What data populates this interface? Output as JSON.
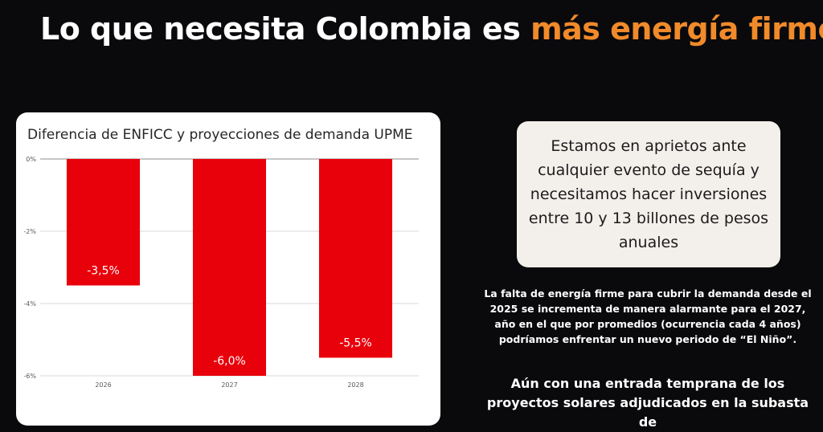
{
  "slide": {
    "title_main": "Lo que necesita Colombia es ",
    "title_accent": "más energía firme",
    "accent_color": "#f08a2a"
  },
  "callout": {
    "text": "Estamos en aprietos ante cualquier evento de sequía y necesitamos hacer inversiones entre 10 y 13 billones de pesos anuales"
  },
  "body": {
    "paragraph_1": "La falta de energía firme para cubrir la demanda desde el 2025 se incrementa de manera alarmante para el 2027, año en el que por promedios (ocurrencia cada 4 años) podríamos enfrentar un nuevo periodo de “El Niño”.",
    "paragraph_2": "Aún con una entrada temprana de los proyectos solares adjudicados en la subasta de"
  },
  "chart_data": {
    "type": "bar",
    "title": "Diferencia de ENFICC y proyecciones de demanda UPME",
    "categories": [
      "2026",
      "2027",
      "2028"
    ],
    "values": [
      -3.5,
      -6.0,
      -5.5
    ],
    "data_labels": [
      "-3,5%",
      "-6,0%",
      "-5,5%"
    ],
    "yticks": [
      0,
      -2,
      -4,
      -6
    ],
    "ytick_labels": [
      "0%",
      "-2%",
      "-4%",
      "-6%"
    ],
    "ylim": [
      -6,
      0
    ],
    "grid": true,
    "bar_color": "#e8000b"
  }
}
